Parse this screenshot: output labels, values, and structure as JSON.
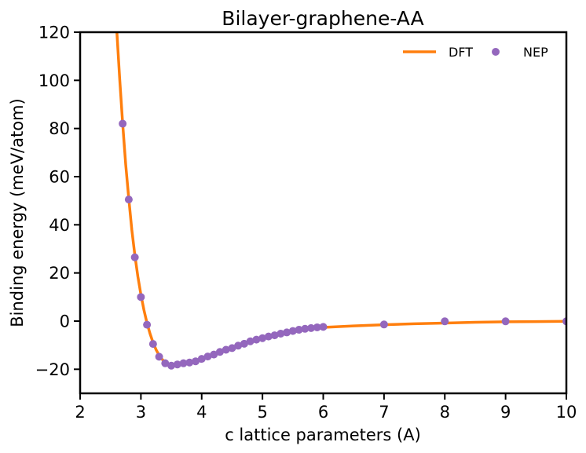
{
  "chart_data": {
    "type": "line",
    "title": "Bilayer-graphene-AA",
    "xlabel": "c lattice parameters (A)",
    "ylabel": "Binding energy (meV/atom)",
    "xlim": [
      2,
      10
    ],
    "ylim": [
      -30,
      120
    ],
    "xticks": [
      "2",
      "3",
      "4",
      "5",
      "6",
      "7",
      "8",
      "9",
      "10"
    ],
    "yticks": [
      "−20",
      "0",
      "20",
      "40",
      "60",
      "80",
      "100",
      "120"
    ],
    "grid": false,
    "legend_position": "top-right",
    "colors": {
      "DFT": "#ff7f0e",
      "NEP": "#9467bd"
    },
    "series": [
      {
        "name": "DFT",
        "style": "line",
        "x": [
          2.6,
          2.65,
          2.7,
          2.75,
          2.8,
          2.85,
          2.9,
          2.95,
          3.0,
          3.05,
          3.1,
          3.15,
          3.2,
          3.25,
          3.3,
          3.35,
          3.4,
          3.45,
          3.5,
          3.55,
          3.6,
          3.7,
          3.8,
          3.9,
          4.0,
          4.1,
          4.2,
          4.3,
          4.4,
          4.5,
          4.6,
          4.7,
          4.8,
          4.9,
          5.0,
          5.1,
          5.2,
          5.3,
          5.4,
          5.5,
          5.6,
          5.7,
          5.8,
          5.9,
          6.0,
          6.5,
          7.0,
          7.5,
          8.0,
          8.5,
          9.0,
          9.5,
          10.0
        ],
        "y": [
          122,
          101,
          82,
          65,
          51,
          38,
          27.5,
          18.5,
          11,
          4.6,
          -0.8,
          -5.2,
          -8.9,
          -11.9,
          -14.2,
          -15.9,
          -17.1,
          -17.9,
          -18.3,
          -18.4,
          -18.3,
          -17.9,
          -17.3,
          -16.6,
          -15.8,
          -14.9,
          -14.0,
          -13.1,
          -12.2,
          -11.3,
          -10.4,
          -9.5,
          -8.6,
          -7.8,
          -7.0,
          -6.3,
          -5.6,
          -5.0,
          -4.5,
          -4.0,
          -3.6,
          -3.3,
          -3.0,
          -2.8,
          -2.6,
          -2.0,
          -1.5,
          -1.1,
          -0.8,
          -0.5,
          -0.3,
          -0.2,
          -0.1
        ]
      },
      {
        "name": "NEP",
        "style": "scatter",
        "x": [
          2.7,
          2.8,
          2.9,
          3.0,
          3.1,
          3.2,
          3.3,
          3.4,
          3.5,
          3.6,
          3.7,
          3.8,
          3.9,
          4.0,
          4.1,
          4.2,
          4.3,
          4.4,
          4.5,
          4.6,
          4.7,
          4.8,
          4.9,
          5.0,
          5.1,
          5.2,
          5.3,
          5.4,
          5.5,
          5.6,
          5.7,
          5.8,
          5.9,
          6.0,
          7.0,
          8.0,
          9.0,
          10.0
        ],
        "y": [
          82,
          50.5,
          26.5,
          10,
          -1.5,
          -9.5,
          -14.8,
          -17.5,
          -18.5,
          -18.0,
          -17.5,
          -17.2,
          -16.7,
          -15.7,
          -14.7,
          -13.9,
          -12.8,
          -11.9,
          -11.2,
          -10.2,
          -9.4,
          -8.4,
          -7.7,
          -7.1,
          -6.4,
          -5.9,
          -5.2,
          -4.7,
          -4.1,
          -3.6,
          -3.2,
          -2.9,
          -2.6,
          -2.4,
          -1.4,
          -0.1,
          -0.1,
          -0.1
        ]
      }
    ]
  }
}
